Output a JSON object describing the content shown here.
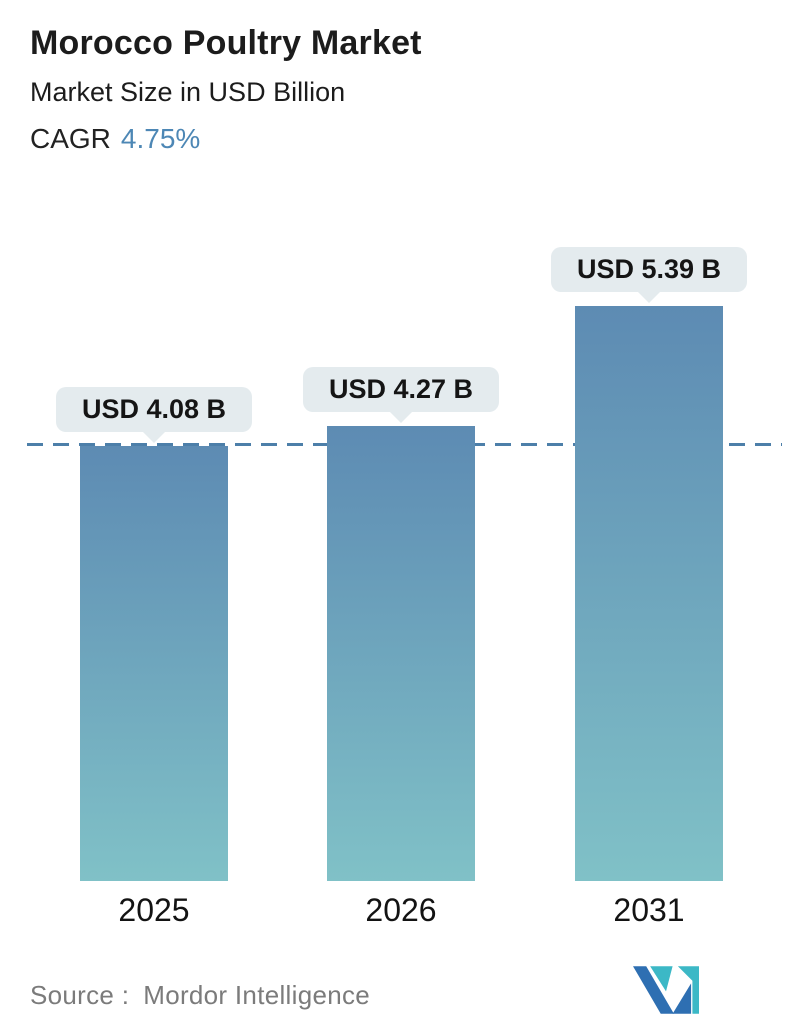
{
  "header": {
    "title": "Morocco Poultry Market",
    "subtitle": "Market Size in USD Billion",
    "cagr_label": "CAGR",
    "cagr_value": "4.75%"
  },
  "chart_data": {
    "type": "bar",
    "title": "Morocco Poultry Market",
    "subtitle": "Market Size in USD Billion",
    "categories": [
      "2025",
      "2026",
      "2031"
    ],
    "values": [
      4.08,
      4.27,
      5.39
    ],
    "value_labels": [
      "USD 4.08 B",
      "USD 4.27 B",
      "USD 5.39 B"
    ],
    "unit": "USD Billion",
    "ylim": [
      0,
      5.39
    ],
    "grid": false,
    "legend": false,
    "reference_line": {
      "value": 4.08,
      "style": "dashed",
      "color": "#4d7fa9"
    },
    "bar_gradient_top": "#5d8bb3",
    "bar_gradient_bottom": "#80c1c7",
    "callout_bg": "#e4ebee",
    "callout_text_color": "#151515"
  },
  "footer": {
    "source_label": "Source :",
    "source_name": "Mordor Intelligence",
    "logo_name": "mordor-intelligence-logo",
    "logo_colors": {
      "teal": "#3cb8c6",
      "blue": "#2e6fb2"
    }
  },
  "colors": {
    "background": "#ffffff",
    "title_text": "#1c1c1c",
    "cagr_accent": "#4d87b5",
    "category_text": "#131313",
    "source_text": "#7b7b7b"
  }
}
